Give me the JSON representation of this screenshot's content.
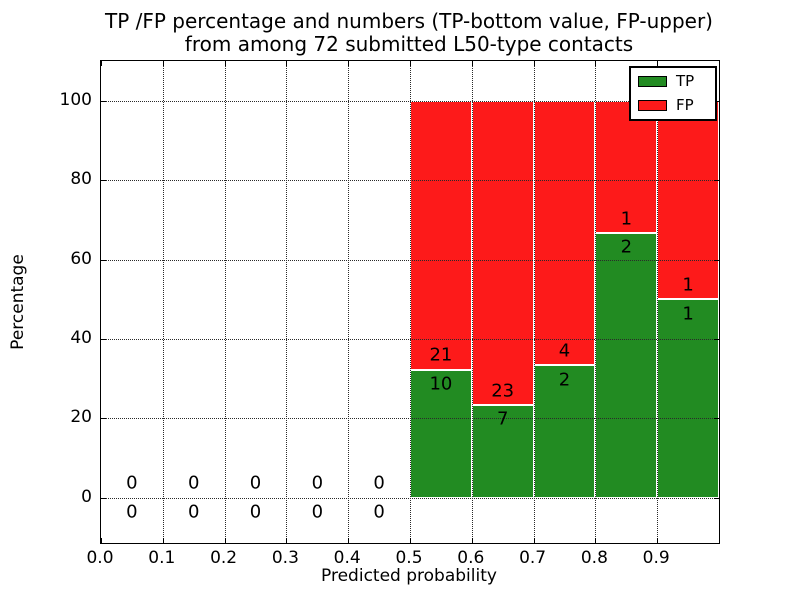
{
  "title": {
    "line1": "TP /FP percentage and numbers (TP-bottom value, FP-upper)",
    "line2": "from among 72 submitted L50-type contacts"
  },
  "axes": {
    "xlabel": "Predicted probability",
    "ylabel": "Percentage"
  },
  "legend": {
    "items": [
      {
        "label": "TP",
        "color": "#228b22"
      },
      {
        "label": "FP",
        "color": "#fd1a1a"
      }
    ],
    "position": "upper right"
  },
  "chart_data": {
    "type": "bar",
    "stacked": true,
    "normalized_percent_total": 100,
    "title": "TP /FP percentage and numbers (TP-bottom value, FP-upper) from among 72 submitted L50-type contacts",
    "xlabel": "Predicted probability",
    "ylabel": "Percentage",
    "total_submitted_contacts": 72,
    "grid": true,
    "xlim": [
      0.0,
      1.0
    ],
    "ylim": [
      -11.4,
      110.0
    ],
    "bin_edges": [
      0.0,
      0.1,
      0.2,
      0.3,
      0.4,
      0.5,
      0.6,
      0.7,
      0.8,
      0.9,
      1.0
    ],
    "bin_centers": [
      0.05,
      0.15,
      0.25,
      0.35,
      0.45,
      0.55,
      0.65,
      0.75,
      0.85,
      0.95
    ],
    "x_ticks": [
      {
        "value": 0.0,
        "label": "0.0"
      },
      {
        "value": 0.1,
        "label": "0.1"
      },
      {
        "value": 0.2,
        "label": "0.2"
      },
      {
        "value": 0.3,
        "label": "0.3"
      },
      {
        "value": 0.4,
        "label": "0.4"
      },
      {
        "value": 0.5,
        "label": "0.5"
      },
      {
        "value": 0.6,
        "label": "0.6"
      },
      {
        "value": 0.7,
        "label": "0.7"
      },
      {
        "value": 0.8,
        "label": "0.8"
      },
      {
        "value": 0.9,
        "label": "0.9"
      }
    ],
    "y_ticks": [
      {
        "value": 0,
        "label": "0"
      },
      {
        "value": 20,
        "label": "20"
      },
      {
        "value": 40,
        "label": "40"
      },
      {
        "value": 60,
        "label": "60"
      },
      {
        "value": 80,
        "label": "80"
      },
      {
        "value": 100,
        "label": "100"
      }
    ],
    "series": [
      {
        "name": "TP",
        "color": "#228b22",
        "counts": [
          0,
          0,
          0,
          0,
          0,
          10,
          7,
          2,
          2,
          1
        ],
        "percent": [
          0,
          0,
          0,
          0,
          0,
          32.258,
          23.333,
          33.333,
          66.667,
          50.0
        ]
      },
      {
        "name": "FP",
        "color": "#fd1a1a",
        "counts": [
          0,
          0,
          0,
          0,
          0,
          21,
          23,
          4,
          1,
          1
        ],
        "percent": [
          0,
          0,
          0,
          0,
          0,
          67.742,
          76.667,
          66.667,
          33.333,
          50.0
        ]
      }
    ]
  }
}
